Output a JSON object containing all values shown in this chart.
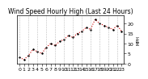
{
  "title": "Wind Speed Hourly High (Last 24 Hours)",
  "ylabel": "MPH",
  "xlabel": "",
  "x_labels": [
    "0",
    "1",
    "2",
    "3",
    "4",
    "5",
    "6",
    "7",
    "8",
    "9",
    "10",
    "11",
    "12",
    "13",
    "14",
    "15",
    "16",
    "17",
    "18",
    "19",
    "20",
    "21",
    "22",
    "23"
  ],
  "y_values": [
    3,
    2,
    4,
    7,
    6,
    5,
    8,
    10,
    9,
    11,
    12,
    14,
    13,
    15,
    16,
    18,
    17,
    22,
    20,
    19,
    18,
    17,
    19,
    16
  ],
  "ylim": [
    0,
    24
  ],
  "xlim": [
    -0.5,
    23.5
  ],
  "line_color": "#cc0000",
  "marker_color": "#000000",
  "bg_color": "#ffffff",
  "plot_bg_color": "#ffffff",
  "grid_color": "#aaaaaa",
  "title_fontsize": 5.5,
  "tick_fontsize": 4.5,
  "ytick_labels": [
    "0",
    "5",
    "10",
    "15",
    "20"
  ],
  "ytick_values": [
    0,
    5,
    10,
    15,
    20
  ]
}
